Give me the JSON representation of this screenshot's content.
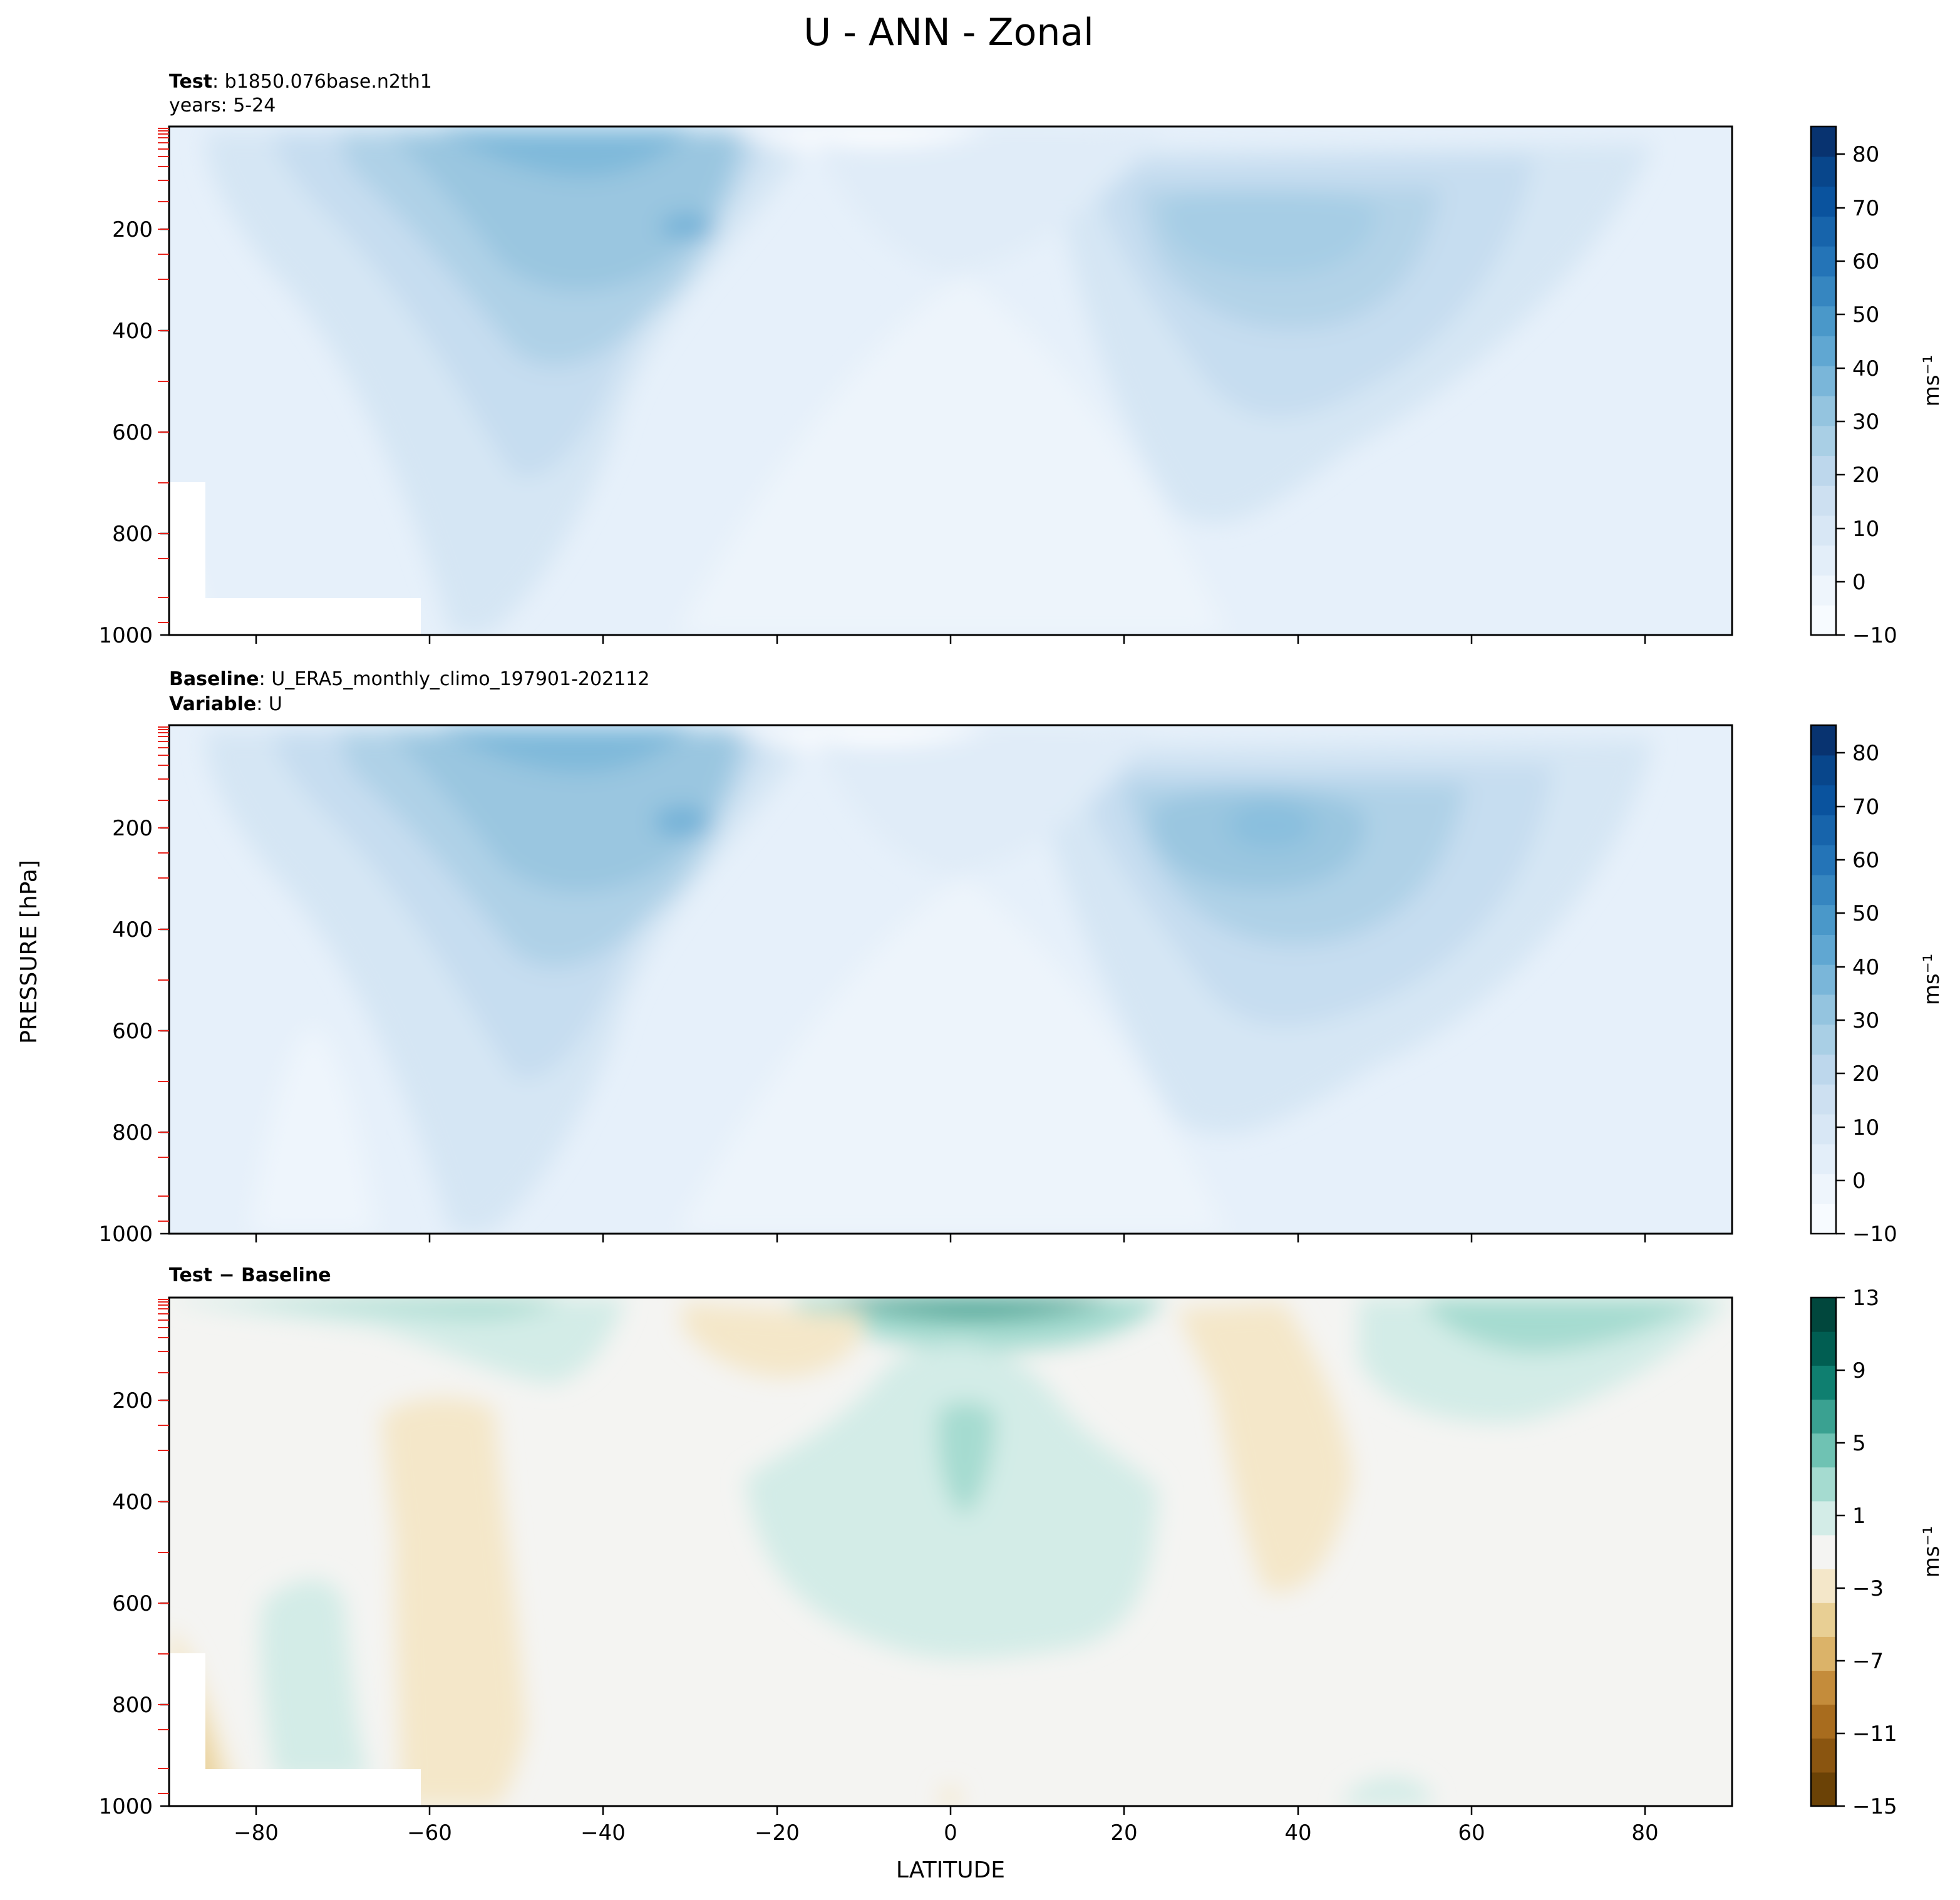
{
  "figure": {
    "title": "U - ANN - Zonal",
    "ylabel": "PRESSURE [hPa]",
    "xlabel": "LATITUDE"
  },
  "panels": [
    {
      "id": "test",
      "line1_bold": "Test",
      "line1_rest": ": b1850.076base.n2th1",
      "line2": "years: 5-24",
      "colorbar_label": "ms⁻¹",
      "colorbar_ticks": [
        "80",
        "70",
        "60",
        "50",
        "40",
        "30",
        "20",
        "10",
        "0",
        "−10"
      ]
    },
    {
      "id": "baseline",
      "line1_bold": "Baseline",
      "line1_rest": ": U_ERA5_monthly_climo_197901-202112",
      "line2_bold": "Variable",
      "line2_rest": ": U",
      "colorbar_label": "ms⁻¹",
      "colorbar_ticks": [
        "80",
        "70",
        "60",
        "50",
        "40",
        "30",
        "20",
        "10",
        "0",
        "−10"
      ]
    },
    {
      "id": "diff",
      "line1_bold": "Test − Baseline",
      "colorbar_label": "ms⁻¹",
      "colorbar_ticks": [
        "13",
        "9",
        "5",
        "1",
        "−3",
        "−7",
        "−11",
        "−15"
      ]
    }
  ],
  "yticks": [
    "200",
    "400",
    "600",
    "800",
    "1000"
  ],
  "xticks": [
    "−80",
    "−60",
    "−40",
    "−20",
    "0",
    "20",
    "40",
    "60",
    "80"
  ],
  "colors": {
    "blues": [
      "#f7fbff",
      "#eef5fc",
      "#e3eef9",
      "#d8e7f5",
      "#cde0f1",
      "#bdd7ec",
      "#a9cfe5",
      "#94c4df",
      "#7ab6d9",
      "#60a7d2",
      "#4a98c9",
      "#3686c0",
      "#2474b7",
      "#1764ab",
      "#0a539e",
      "#08468b",
      "#083370"
    ],
    "div": [
      "#6b4206",
      "#8a5510",
      "#a86c1e",
      "#c48c3b",
      "#dbb369",
      "#e8cf94",
      "#f4e7c9",
      "#f4f4f2",
      "#d3ece7",
      "#a5dbd0",
      "#6fc2b3",
      "#3aa191",
      "#0f7f70",
      "#015e52",
      "#01473d"
    ]
  },
  "chart_data": [
    {
      "type": "heatmap",
      "title": "Test : b1850.076base.n2th1",
      "subtitle": "years: 5-24",
      "xlabel": "LATITUDE",
      "ylabel": "PRESSURE [hPa]",
      "xlim": [
        -90,
        90
      ],
      "ylim": [
        1000,
        1
      ],
      "colorbar": {
        "label": "ms⁻¹",
        "range": [
          -10,
          85
        ],
        "step": 5
      },
      "features": [
        {
          "name": "SH jet",
          "lat": -30,
          "pressure_hPa": 200,
          "value": 40
        },
        {
          "name": "NH jet",
          "lat": 33,
          "pressure_hPa": 200,
          "value": 30
        }
      ]
    },
    {
      "type": "heatmap",
      "title": "Baseline : U_ERA5_monthly_climo_197901-202112",
      "subtitle": "Variable : U",
      "xlabel": "LATITUDE",
      "ylabel": "PRESSURE [hPa]",
      "xlim": [
        -90,
        90
      ],
      "ylim": [
        1000,
        1
      ],
      "colorbar": {
        "label": "ms⁻¹",
        "range": [
          -10,
          85
        ],
        "step": 5
      },
      "features": [
        {
          "name": "SH jet",
          "lat": -31,
          "pressure_hPa": 200,
          "value": 40
        },
        {
          "name": "NH jet",
          "lat": 36,
          "pressure_hPa": 210,
          "value": 35
        }
      ]
    },
    {
      "type": "heatmap",
      "title": "Test − Baseline",
      "xlabel": "LATITUDE",
      "ylabel": "PRESSURE [hPa]",
      "xlim": [
        -90,
        90
      ],
      "ylim": [
        1000,
        1
      ],
      "colorbar": {
        "label": "ms⁻¹",
        "range": [
          -15,
          13
        ],
        "step": 2
      },
      "features": [
        {
          "name": "equatorial upper maximum",
          "lat": 10,
          "pressure_hPa": 10,
          "value": 11
        },
        {
          "name": "tropical positive",
          "lat": 2,
          "pressure_hPa": 300,
          "value": 3
        }
      ]
    }
  ]
}
